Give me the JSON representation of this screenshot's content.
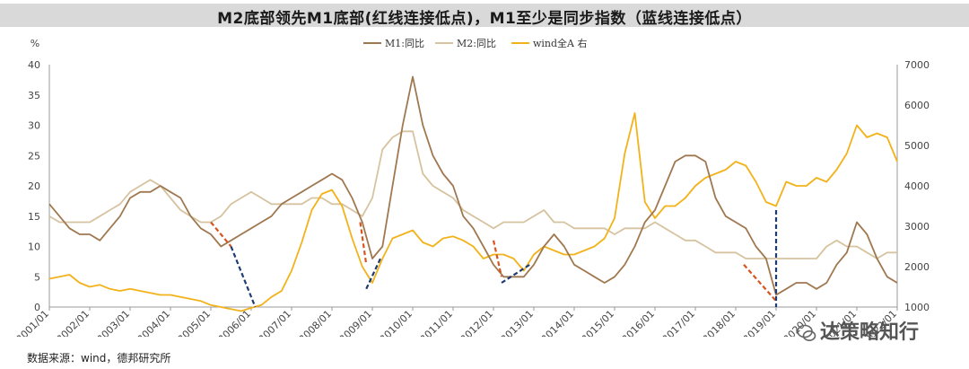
{
  "title": "M2底部领先M1底部(红线连接低点)，M1至少是同步指数（蓝线连接低点）",
  "source_note": "数据来源：wind，德邦研究所",
  "watermark": "达策略知行",
  "chart_data": {
    "type": "line",
    "ylabel_left": "%",
    "ylim_left": [
      0,
      40
    ],
    "ylim_right": [
      1000,
      7000
    ],
    "yticks_left": [
      0,
      5,
      10,
      15,
      20,
      25,
      30,
      35,
      40
    ],
    "yticks_right": [
      1000,
      2000,
      3000,
      4000,
      5000,
      6000,
      7000
    ],
    "xlim": [
      2001.0,
      2022.0
    ],
    "xtick_labels": [
      "2001/01",
      "2002/01",
      "2003/01",
      "2004/01",
      "2005/01",
      "2006/01",
      "2007/01",
      "2008/01",
      "2009/01",
      "2010/01",
      "2011/01",
      "2012/01",
      "2013/01",
      "2014/01",
      "2015/01",
      "2016/01",
      "2017/01",
      "2018/01",
      "2019/01",
      "2020/01",
      "2021/01",
      "2022/01"
    ],
    "legend": [
      "M1:同比",
      "M2:同比",
      "wind全A 右"
    ],
    "legend_position": "top",
    "colors": {
      "M1": "#a07850",
      "M2": "#d6c3a0",
      "windA": "#f2b21a",
      "red": "#d9541e",
      "blue": "#1f3b73"
    },
    "series": [
      {
        "name": "M1:同比",
        "axis": "left",
        "x": [
          2001.0,
          2001.25,
          2001.5,
          2001.75,
          2002.0,
          2002.25,
          2002.5,
          2002.75,
          2003.0,
          2003.25,
          2003.5,
          2003.75,
          2004.0,
          2004.25,
          2004.5,
          2004.75,
          2005.0,
          2005.25,
          2005.5,
          2005.75,
          2006.0,
          2006.25,
          2006.5,
          2006.75,
          2007.0,
          2007.25,
          2007.5,
          2007.75,
          2008.0,
          2008.25,
          2008.5,
          2008.75,
          2009.0,
          2009.25,
          2009.5,
          2009.75,
          2010.0,
          2010.25,
          2010.5,
          2010.75,
          2011.0,
          2011.25,
          2011.5,
          2011.75,
          2012.0,
          2012.25,
          2012.5,
          2012.75,
          2013.0,
          2013.25,
          2013.5,
          2013.75,
          2014.0,
          2014.25,
          2014.5,
          2014.75,
          2015.0,
          2015.25,
          2015.5,
          2015.75,
          2016.0,
          2016.25,
          2016.5,
          2016.75,
          2017.0,
          2017.25,
          2017.5,
          2017.75,
          2018.0,
          2018.25,
          2018.5,
          2018.75,
          2019.0,
          2019.25,
          2019.5,
          2019.75,
          2020.0,
          2020.25,
          2020.5,
          2020.75,
          2021.0,
          2021.25,
          2021.5,
          2021.75,
          2022.0
        ],
        "y": [
          17,
          15,
          13,
          12,
          12,
          11,
          13,
          15,
          18,
          19,
          19,
          20,
          19,
          18,
          15,
          13,
          12,
          10,
          11,
          12,
          13,
          14,
          15,
          17,
          18,
          19,
          20,
          21,
          22,
          21,
          18,
          14,
          8,
          10,
          20,
          30,
          38,
          30,
          25,
          22,
          20,
          15,
          13,
          10,
          7,
          5,
          5,
          5,
          7,
          10,
          12,
          10,
          7,
          6,
          5,
          4,
          5,
          7,
          10,
          14,
          16,
          20,
          24,
          25,
          25,
          24,
          18,
          15,
          14,
          13,
          10,
          8,
          2,
          3,
          4,
          4,
          3,
          4,
          7,
          9,
          14,
          12,
          8,
          5,
          4
        ]
      },
      {
        "name": "M2:同比",
        "axis": "left",
        "x": [
          2001.0,
          2001.25,
          2001.5,
          2001.75,
          2002.0,
          2002.25,
          2002.5,
          2002.75,
          2003.0,
          2003.25,
          2003.5,
          2003.75,
          2004.0,
          2004.25,
          2004.5,
          2004.75,
          2005.0,
          2005.25,
          2005.5,
          2005.75,
          2006.0,
          2006.25,
          2006.5,
          2006.75,
          2007.0,
          2007.25,
          2007.5,
          2007.75,
          2008.0,
          2008.25,
          2008.5,
          2008.75,
          2009.0,
          2009.25,
          2009.5,
          2009.75,
          2010.0,
          2010.25,
          2010.5,
          2010.75,
          2011.0,
          2011.25,
          2011.5,
          2011.75,
          2012.0,
          2012.25,
          2012.5,
          2012.75,
          2013.0,
          2013.25,
          2013.5,
          2013.75,
          2014.0,
          2014.25,
          2014.5,
          2014.75,
          2015.0,
          2015.25,
          2015.5,
          2015.75,
          2016.0,
          2016.25,
          2016.5,
          2016.75,
          2017.0,
          2017.25,
          2017.5,
          2017.75,
          2018.0,
          2018.25,
          2018.5,
          2018.75,
          2019.0,
          2019.25,
          2019.5,
          2019.75,
          2020.0,
          2020.25,
          2020.5,
          2020.75,
          2021.0,
          2021.25,
          2021.5,
          2021.75,
          2022.0
        ],
        "y": [
          15,
          14,
          14,
          14,
          14,
          15,
          16,
          17,
          19,
          20,
          21,
          20,
          18,
          16,
          15,
          14,
          14,
          15,
          17,
          18,
          19,
          18,
          17,
          17,
          17,
          17,
          18,
          18,
          17,
          17,
          16,
          15,
          18,
          26,
          28,
          29,
          29,
          22,
          20,
          19,
          18,
          16,
          15,
          14,
          13,
          14,
          14,
          14,
          15,
          16,
          14,
          14,
          13,
          13,
          13,
          13,
          12,
          13,
          13,
          13,
          14,
          13,
          12,
          11,
          11,
          10,
          9,
          9,
          9,
          8,
          8,
          8,
          8,
          8,
          8,
          8,
          8,
          10,
          11,
          10,
          10,
          9,
          8,
          9,
          9
        ]
      },
      {
        "name": "wind全A 右",
        "axis": "right",
        "x": [
          2001.0,
          2001.25,
          2001.5,
          2001.75,
          2002.0,
          2002.25,
          2002.5,
          2002.75,
          2003.0,
          2003.25,
          2003.5,
          2003.75,
          2004.0,
          2004.25,
          2004.5,
          2004.75,
          2005.0,
          2005.25,
          2005.5,
          2005.75,
          2006.0,
          2006.25,
          2006.5,
          2006.75,
          2007.0,
          2007.25,
          2007.5,
          2007.75,
          2008.0,
          2008.25,
          2008.5,
          2008.75,
          2009.0,
          2009.25,
          2009.5,
          2009.75,
          2010.0,
          2010.25,
          2010.5,
          2010.75,
          2011.0,
          2011.25,
          2011.5,
          2011.75,
          2012.0,
          2012.25,
          2012.5,
          2012.75,
          2013.0,
          2013.25,
          2013.5,
          2013.75,
          2014.0,
          2014.25,
          2014.5,
          2014.75,
          2015.0,
          2015.25,
          2015.5,
          2015.75,
          2016.0,
          2016.25,
          2016.5,
          2016.75,
          2017.0,
          2017.25,
          2017.5,
          2017.75,
          2018.0,
          2018.25,
          2018.5,
          2018.75,
          2019.0,
          2019.25,
          2019.5,
          2019.75,
          2020.0,
          2020.25,
          2020.5,
          2020.75,
          2021.0,
          2021.25,
          2021.5,
          2021.75,
          2022.0
        ],
        "y": [
          1700,
          1750,
          1800,
          1600,
          1500,
          1550,
          1450,
          1400,
          1450,
          1400,
          1350,
          1300,
          1300,
          1250,
          1200,
          1150,
          1050,
          1000,
          950,
          900,
          980,
          1050,
          1250,
          1400,
          1900,
          2600,
          3400,
          3800,
          3900,
          3500,
          2700,
          2000,
          1600,
          2200,
          2700,
          2800,
          2900,
          2600,
          2500,
          2700,
          2750,
          2650,
          2500,
          2200,
          2300,
          2300,
          2200,
          1900,
          2300,
          2500,
          2400,
          2300,
          2300,
          2400,
          2500,
          2700,
          3200,
          4800,
          5800,
          3600,
          3200,
          3500,
          3500,
          3700,
          4000,
          4200,
          4300,
          4400,
          4600,
          4500,
          4100,
          3600,
          3500,
          4100,
          4000,
          4000,
          4200,
          4100,
          4400,
          4800,
          5500,
          5200,
          5300,
          5200,
          4600
        ]
      }
    ],
    "annotations": {
      "red_dashed": [
        [
          [
            2005.0,
            14
          ],
          [
            2005.5,
            10
          ]
        ],
        [
          [
            2008.7,
            14
          ],
          [
            2008.85,
            7
          ]
        ],
        [
          [
            2012.0,
            11
          ],
          [
            2012.2,
            5
          ]
        ],
        [
          [
            2018.2,
            7
          ],
          [
            2019.0,
            1
          ]
        ]
      ],
      "blue_dashed": [
        [
          [
            2005.5,
            10
          ],
          [
            2006.1,
            0
          ]
        ],
        [
          [
            2008.85,
            3
          ],
          [
            2009.2,
            8
          ]
        ],
        [
          [
            2012.2,
            4
          ],
          [
            2012.9,
            7
          ]
        ],
        [
          [
            2019.0,
            16
          ],
          [
            2019.0,
            0
          ]
        ]
      ]
    }
  }
}
